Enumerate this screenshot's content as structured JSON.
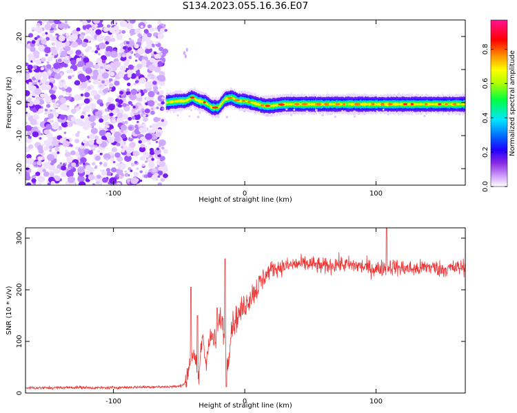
{
  "title": "S134.2023.055.16.36.E07",
  "chart_data": [
    {
      "type": "heatmap",
      "xlabel": "Height of straight line (km)",
      "ylabel": "Frequency (Hz)",
      "xlim": [
        -167,
        168
      ],
      "ylim": [
        -25,
        25
      ],
      "xticks": [
        -100,
        0,
        100
      ],
      "yticks": [
        -20,
        -10,
        0,
        10,
        20
      ],
      "noise_region_x": [
        -167,
        -60
      ],
      "signal_start_x": -60,
      "signal_frequency": {
        "x": [
          -60,
          -50,
          -45,
          -40,
          -35,
          -30,
          -25,
          -20,
          -15,
          -10,
          -5,
          0,
          5,
          10,
          15,
          20,
          30,
          40,
          50,
          60,
          70,
          80,
          90,
          100,
          110,
          120,
          130,
          140,
          150,
          160,
          168
        ],
        "y": [
          0,
          0.5,
          0.5,
          1.5,
          0.5,
          0,
          -1.5,
          -1.5,
          1,
          1.5,
          0.5,
          0.5,
          0,
          -0.5,
          -1,
          -1,
          -0.5,
          -0.5,
          -0.5,
          -0.5,
          -0.5,
          -0.5,
          -0.5,
          -0.5,
          -0.5,
          -0.5,
          -0.5,
          -0.5,
          -0.5,
          -0.5,
          -0.5
        ]
      },
      "colorbar": {
        "label": "Normalized spectral amplitude",
        "range": [
          0,
          0.97
        ],
        "ticks": [
          "0.0",
          "0.2",
          "0.4",
          "0.6",
          "0.8"
        ]
      },
      "grid": false
    },
    {
      "type": "line",
      "xlabel": "Height of straight line (km)",
      "ylabel": "SNR (10 * v/v)",
      "xlim": [
        -167,
        168
      ],
      "ylim": [
        0,
        320
      ],
      "xticks": [
        -100,
        0,
        100
      ],
      "yticks": [
        0,
        100,
        200,
        300
      ],
      "series": [
        {
          "color": "#ee3333",
          "x": [
            -167,
            -150,
            -130,
            -110,
            -90,
            -70,
            -60,
            -50,
            -45,
            -42,
            -40,
            -37,
            -35,
            -32,
            -30,
            -28,
            -25,
            -22,
            -20,
            -18,
            -15,
            -13,
            -10,
            -5,
            0,
            5,
            10,
            15,
            20,
            30,
            40,
            50,
            60,
            70,
            80,
            90,
            100,
            110,
            120,
            130,
            140,
            150,
            160,
            168
          ],
          "y": [
            10,
            10,
            11,
            10,
            11,
            12,
            12,
            13,
            20,
            60,
            80,
            50,
            30,
            120,
            60,
            90,
            110,
            95,
            130,
            150,
            100,
            60,
            130,
            150,
            170,
            190,
            205,
            225,
            240,
            245,
            250,
            250,
            245,
            250,
            248,
            245,
            240,
            245,
            242,
            240,
            245,
            240,
            242,
            245
          ]
        }
      ],
      "peaks_x": [
        -41,
        -36,
        -21,
        -15,
        108
      ],
      "peaks_y": [
        205,
        150,
        165,
        260,
        320
      ],
      "grid": false
    }
  ]
}
